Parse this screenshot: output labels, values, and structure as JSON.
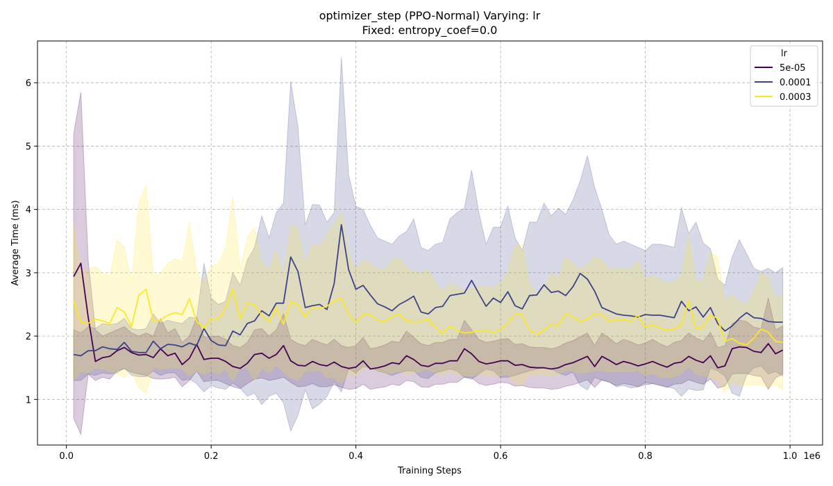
{
  "chart_data": {
    "type": "line",
    "title_line1": "optimizer_step (PPO-Normal) Varying: lr",
    "title_line2": "Fixed: entropy_coef=0.0",
    "xlabel": "Training Steps",
    "ylabel": "Average Time (ms)",
    "x_offset_label": "1e6",
    "xlim": [
      -0.04,
      1.045
    ],
    "ylim": [
      0.28,
      6.66
    ],
    "x_ticks": [
      0.0,
      0.2,
      0.4,
      0.6,
      0.8,
      1.0
    ],
    "x_tick_labels": [
      "0.0",
      "0.2",
      "0.4",
      "0.6",
      "0.8",
      "1.0"
    ],
    "y_ticks": [
      1,
      2,
      3,
      4,
      5,
      6
    ],
    "y_tick_labels": [
      "1",
      "2",
      "3",
      "4",
      "5",
      "6"
    ],
    "grid": true,
    "legend": {
      "title": "lr",
      "placement": "top-right"
    },
    "x": [
      0.01,
      0.02,
      0.03,
      0.04,
      0.05,
      0.06,
      0.07,
      0.08,
      0.09,
      0.1,
      0.11,
      0.12,
      0.13,
      0.14,
      0.15,
      0.16,
      0.17,
      0.18,
      0.19,
      0.2,
      0.21,
      0.22,
      0.23,
      0.24,
      0.25,
      0.26,
      0.27,
      0.28,
      0.29,
      0.3,
      0.31,
      0.32,
      0.33,
      0.34,
      0.35,
      0.36,
      0.37,
      0.38,
      0.39,
      0.4,
      0.41,
      0.42,
      0.43,
      0.44,
      0.45,
      0.46,
      0.47,
      0.48,
      0.49,
      0.5,
      0.51,
      0.52,
      0.53,
      0.54,
      0.55,
      0.56,
      0.57,
      0.58,
      0.59,
      0.6,
      0.61,
      0.62,
      0.63,
      0.64,
      0.65,
      0.66,
      0.67,
      0.68,
      0.69,
      0.7,
      0.71,
      0.72,
      0.73,
      0.74,
      0.75,
      0.76,
      0.77,
      0.78,
      0.79,
      0.8,
      0.81,
      0.82,
      0.83,
      0.84,
      0.85,
      0.86,
      0.87,
      0.88,
      0.89,
      0.9,
      0.91,
      0.92,
      0.93,
      0.94,
      0.95,
      0.96,
      0.97,
      0.98,
      0.99
    ],
    "series": [
      {
        "name": "5e-05",
        "color": "#440154",
        "values": [
          2.94,
          3.15,
          2.3,
          1.6,
          1.66,
          1.68,
          1.77,
          1.82,
          1.74,
          1.7,
          1.71,
          1.66,
          1.8,
          1.69,
          1.73,
          1.55,
          1.65,
          1.87,
          1.63,
          1.65,
          1.65,
          1.6,
          1.52,
          1.49,
          1.57,
          1.71,
          1.73,
          1.65,
          1.71,
          1.85,
          1.61,
          1.54,
          1.53,
          1.6,
          1.55,
          1.53,
          1.59,
          1.52,
          1.49,
          1.51,
          1.61,
          1.48,
          1.5,
          1.53,
          1.58,
          1.56,
          1.69,
          1.63,
          1.54,
          1.52,
          1.57,
          1.57,
          1.61,
          1.61,
          1.8,
          1.72,
          1.6,
          1.56,
          1.58,
          1.61,
          1.61,
          1.54,
          1.55,
          1.51,
          1.5,
          1.5,
          1.48,
          1.5,
          1.55,
          1.58,
          1.63,
          1.68,
          1.52,
          1.68,
          1.62,
          1.55,
          1.6,
          1.57,
          1.53,
          1.56,
          1.6,
          1.55,
          1.51,
          1.57,
          1.59,
          1.68,
          1.62,
          1.58,
          1.69,
          1.5,
          1.53,
          1.8,
          1.83,
          1.82,
          1.76,
          1.74,
          1.88,
          1.72,
          1.78
        ],
        "upper": [
          5.2,
          5.85,
          3.2,
          2.1,
          2.0,
          2.05,
          2.1,
          2.15,
          2.05,
          2.0,
          2.05,
          2.0,
          2.28,
          2.05,
          2.12,
          1.9,
          2.0,
          2.3,
          1.98,
          2.0,
          2.0,
          1.95,
          1.85,
          1.82,
          1.9,
          2.1,
          2.12,
          2.0,
          2.1,
          2.35,
          1.95,
          1.88,
          1.85,
          1.95,
          1.9,
          1.86,
          1.95,
          1.85,
          1.82,
          1.85,
          1.98,
          1.8,
          1.82,
          1.86,
          1.92,
          1.9,
          2.08,
          1.98,
          1.88,
          1.85,
          1.9,
          1.9,
          1.95,
          1.95,
          2.25,
          2.1,
          1.95,
          1.9,
          1.92,
          1.95,
          1.96,
          1.87,
          1.88,
          1.83,
          1.82,
          1.82,
          1.8,
          1.83,
          1.89,
          1.93,
          1.99,
          2.05,
          1.85,
          2.05,
          1.97,
          1.88,
          1.95,
          1.91,
          1.86,
          1.89,
          1.95,
          1.88,
          1.83,
          1.9,
          1.93,
          2.05,
          1.97,
          1.92,
          2.06,
          1.82,
          1.85,
          2.2,
          2.25,
          2.23,
          2.14,
          2.12,
          2.6,
          2.1,
          2.16
        ],
        "lower": [
          0.7,
          0.45,
          1.4,
          1.3,
          1.35,
          1.32,
          1.45,
          1.48,
          1.43,
          1.4,
          1.38,
          1.33,
          1.32,
          1.33,
          1.35,
          1.2,
          1.3,
          1.45,
          1.28,
          1.3,
          1.3,
          1.25,
          1.2,
          1.17,
          1.25,
          1.32,
          1.34,
          1.3,
          1.32,
          1.35,
          1.27,
          1.2,
          1.21,
          1.25,
          1.2,
          1.2,
          1.23,
          1.19,
          1.16,
          1.17,
          1.24,
          1.16,
          1.18,
          1.2,
          1.24,
          1.22,
          1.3,
          1.28,
          1.2,
          1.19,
          1.24,
          1.24,
          1.27,
          1.27,
          1.35,
          1.34,
          1.25,
          1.22,
          1.24,
          1.27,
          1.26,
          1.21,
          1.22,
          1.19,
          1.18,
          1.18,
          1.16,
          1.17,
          1.21,
          1.23,
          1.27,
          1.31,
          1.19,
          1.31,
          1.27,
          1.22,
          1.25,
          1.23,
          1.2,
          1.23,
          1.25,
          1.22,
          1.19,
          1.24,
          1.25,
          1.31,
          1.27,
          1.24,
          1.32,
          1.18,
          1.21,
          1.4,
          1.41,
          1.41,
          1.38,
          1.36,
          1.16,
          1.34,
          1.4
        ]
      },
      {
        "name": "0.0001",
        "color": "#3b4287",
        "values": [
          1.71,
          1.69,
          1.77,
          1.77,
          1.83,
          1.8,
          1.79,
          1.9,
          1.76,
          1.74,
          1.74,
          1.92,
          1.8,
          1.87,
          1.86,
          1.83,
          1.89,
          1.85,
          2.12,
          1.93,
          1.86,
          1.85,
          2.08,
          2.02,
          2.2,
          2.24,
          2.4,
          2.32,
          2.52,
          2.52,
          3.25,
          3.02,
          2.45,
          2.48,
          2.5,
          2.42,
          2.83,
          3.76,
          3.05,
          2.74,
          2.8,
          2.65,
          2.51,
          2.46,
          2.4,
          2.5,
          2.56,
          2.63,
          2.38,
          2.35,
          2.45,
          2.47,
          2.64,
          2.66,
          2.68,
          2.88,
          2.67,
          2.47,
          2.6,
          2.53,
          2.7,
          2.48,
          2.43,
          2.64,
          2.65,
          2.81,
          2.69,
          2.71,
          2.64,
          2.78,
          2.99,
          2.9,
          2.71,
          2.45,
          2.4,
          2.35,
          2.33,
          2.32,
          2.3,
          2.34,
          2.33,
          2.33,
          2.31,
          2.29,
          2.55,
          2.4,
          2.46,
          2.3,
          2.45,
          2.2,
          2.08,
          2.16,
          2.28,
          2.37,
          2.29,
          2.28,
          2.23,
          2.22,
          2.22
        ],
        "upper": [
          2.1,
          2.05,
          2.15,
          2.12,
          2.2,
          2.18,
          2.2,
          2.28,
          2.12,
          2.1,
          2.12,
          2.35,
          2.2,
          2.25,
          2.22,
          2.2,
          2.3,
          2.28,
          3.15,
          2.6,
          2.5,
          2.55,
          3.0,
          2.8,
          3.2,
          3.4,
          3.9,
          3.55,
          3.95,
          4.1,
          6.02,
          5.3,
          3.75,
          4.08,
          4.07,
          3.8,
          3.95,
          6.4,
          4.55,
          4.05,
          4.0,
          3.75,
          3.55,
          3.5,
          3.45,
          3.58,
          3.65,
          3.85,
          3.4,
          3.35,
          3.45,
          3.48,
          3.85,
          3.95,
          4.02,
          4.62,
          3.95,
          3.45,
          3.72,
          3.72,
          4.05,
          3.55,
          3.35,
          3.8,
          3.8,
          4.1,
          3.9,
          4.02,
          3.92,
          4.15,
          4.45,
          4.85,
          4.35,
          4.0,
          3.6,
          3.45,
          3.5,
          3.45,
          3.4,
          3.35,
          3.45,
          3.45,
          3.43,
          3.4,
          4.03,
          3.62,
          3.8,
          3.47,
          3.38,
          2.9,
          2.8,
          3.25,
          3.52,
          3.3,
          3.07,
          3.02,
          3.07,
          3.0,
          3.08
        ],
        "lower": [
          1.3,
          1.3,
          1.4,
          1.38,
          1.42,
          1.4,
          1.42,
          1.5,
          1.38,
          1.36,
          1.36,
          1.45,
          1.38,
          1.42,
          1.42,
          1.3,
          1.32,
          1.25,
          1.12,
          1.22,
          1.18,
          1.16,
          1.26,
          1.18,
          1.05,
          1.1,
          0.92,
          1.05,
          1.1,
          0.95,
          0.5,
          0.75,
          1.15,
          0.85,
          0.93,
          1.05,
          1.28,
          1.12,
          1.48,
          1.42,
          1.52,
          1.5,
          1.45,
          1.42,
          1.38,
          1.42,
          1.45,
          1.45,
          1.35,
          1.33,
          1.42,
          1.45,
          1.48,
          1.45,
          1.35,
          1.32,
          1.4,
          1.48,
          1.45,
          1.35,
          1.35,
          1.38,
          1.42,
          1.45,
          1.48,
          1.5,
          1.48,
          1.42,
          1.38,
          1.43,
          1.22,
          1.15,
          1.35,
          1.3,
          1.28,
          1.2,
          1.22,
          1.18,
          1.2,
          1.27,
          1.25,
          1.23,
          1.2,
          1.17,
          1.05,
          1.17,
          1.14,
          1.15,
          1.5,
          1.45,
          1.37,
          1.1,
          1.05,
          1.38,
          1.5,
          1.53,
          1.4,
          1.44,
          1.37
        ]
      },
      {
        "name": "0.0003",
        "color": "#fde725",
        "values": [
          2.56,
          2.22,
          2.2,
          2.27,
          2.24,
          2.2,
          2.45,
          2.38,
          2.15,
          2.64,
          2.74,
          2.24,
          2.25,
          2.33,
          2.37,
          2.34,
          2.59,
          2.23,
          2.13,
          2.27,
          2.27,
          2.44,
          2.74,
          2.27,
          2.52,
          2.5,
          2.33,
          2.23,
          2.45,
          2.19,
          2.54,
          2.5,
          2.3,
          2.46,
          2.44,
          2.47,
          2.56,
          2.6,
          2.35,
          2.21,
          2.34,
          2.34,
          2.25,
          2.23,
          2.31,
          2.35,
          2.24,
          2.22,
          2.23,
          2.27,
          2.14,
          2.04,
          2.16,
          2.09,
          2.05,
          2.06,
          2.09,
          2.09,
          2.06,
          2.11,
          2.2,
          2.34,
          2.34,
          2.1,
          2.03,
          2.09,
          2.19,
          2.16,
          2.36,
          2.3,
          2.23,
          2.27,
          2.36,
          2.33,
          2.24,
          2.26,
          2.26,
          2.24,
          2.33,
          2.14,
          2.18,
          2.13,
          2.09,
          2.11,
          2.18,
          2.56,
          2.12,
          2.14,
          2.33,
          2.28,
          1.92,
          1.96,
          1.89,
          1.86,
          1.97,
          2.11,
          2.06,
          1.92,
          1.9
        ],
        "upper": [
          3.8,
          3.0,
          3.05,
          3.1,
          3.0,
          2.95,
          3.52,
          3.4,
          2.85,
          4.1,
          4.38,
          2.95,
          3.0,
          3.15,
          3.22,
          3.18,
          3.8,
          3.0,
          2.85,
          3.1,
          3.15,
          3.4,
          4.2,
          3.05,
          3.55,
          3.72,
          3.15,
          3.05,
          3.35,
          2.95,
          3.75,
          3.7,
          3.15,
          3.45,
          3.42,
          3.6,
          3.78,
          3.95,
          3.3,
          3.05,
          3.2,
          3.15,
          3.05,
          3.05,
          3.2,
          3.25,
          3.08,
          3.02,
          3.0,
          3.05,
          2.85,
          2.7,
          2.85,
          2.78,
          2.72,
          2.75,
          2.78,
          2.8,
          2.75,
          2.85,
          3.0,
          3.42,
          3.45,
          2.8,
          2.68,
          2.78,
          3.0,
          2.92,
          3.25,
          3.15,
          3.05,
          3.12,
          3.26,
          3.2,
          3.05,
          3.08,
          3.08,
          3.05,
          3.2,
          2.9,
          2.95,
          2.9,
          2.84,
          2.86,
          2.95,
          3.6,
          2.85,
          2.9,
          3.32,
          3.25,
          2.55,
          2.65,
          2.55,
          2.5,
          2.7,
          3.0,
          2.92,
          2.6,
          2.65
        ],
        "lower": [
          1.3,
          1.45,
          1.42,
          1.5,
          1.48,
          1.45,
          1.4,
          1.35,
          1.45,
          1.18,
          1.1,
          1.52,
          1.48,
          1.5,
          1.5,
          1.48,
          1.38,
          1.45,
          1.4,
          1.44,
          1.4,
          1.48,
          1.3,
          1.5,
          1.5,
          1.3,
          1.5,
          1.42,
          1.55,
          1.43,
          1.35,
          1.3,
          1.45,
          1.45,
          1.46,
          1.35,
          1.34,
          1.25,
          1.4,
          1.38,
          1.48,
          1.52,
          1.45,
          1.4,
          1.42,
          1.45,
          1.4,
          1.42,
          1.45,
          1.48,
          1.42,
          1.38,
          1.46,
          1.4,
          1.38,
          1.37,
          1.4,
          1.38,
          1.37,
          1.38,
          1.4,
          1.26,
          1.24,
          1.4,
          1.38,
          1.4,
          1.38,
          1.4,
          1.47,
          1.45,
          1.41,
          1.43,
          1.46,
          1.46,
          1.43,
          1.44,
          1.44,
          1.43,
          1.46,
          1.38,
          1.41,
          1.36,
          1.34,
          1.36,
          1.4,
          1.52,
          1.39,
          1.38,
          1.34,
          1.31,
          1.1,
          1.27,
          1.23,
          1.22,
          1.24,
          1.22,
          1.2,
          1.24,
          1.15
        ]
      }
    ]
  }
}
